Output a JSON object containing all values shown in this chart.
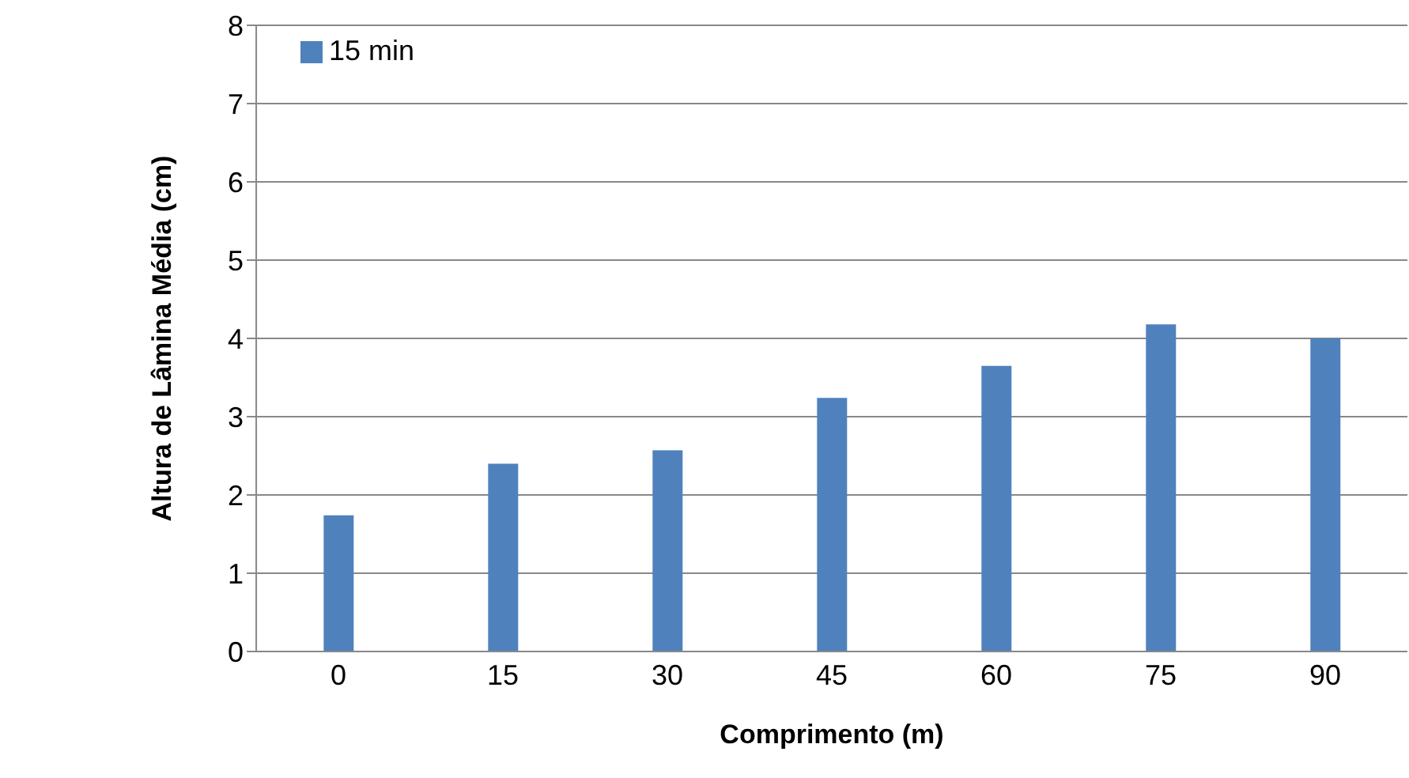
{
  "chart_data": {
    "type": "bar",
    "xlabel": "Comprimento (m)",
    "ylabel": "Altura de Lâmina Média (cm)",
    "categories": [
      "0",
      "15",
      "30",
      "45",
      "60",
      "75",
      "90"
    ],
    "series": [
      {
        "name": "15 min",
        "color": "#4f81bd",
        "values": [
          1.74,
          2.4,
          2.57,
          3.24,
          3.65,
          4.18,
          4.0
        ]
      }
    ],
    "ylim": [
      0,
      8
    ],
    "yticks": [
      0,
      1,
      2,
      3,
      4,
      5,
      6,
      7,
      8
    ],
    "grid": "y",
    "legend": "top left"
  }
}
